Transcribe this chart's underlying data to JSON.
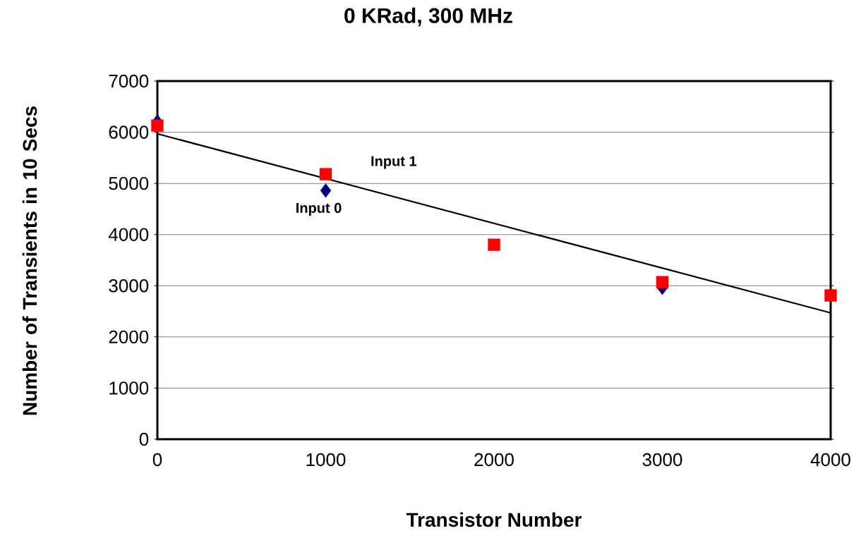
{
  "chart_data": {
    "type": "scatter",
    "title": "0 KRad, 300 MHz",
    "xlabel": "Transistor Number",
    "ylabel": "Number of Transients in 10 Secs",
    "x": [
      0,
      1000,
      2000,
      3000,
      4000
    ],
    "series": [
      {
        "name": "Input 0",
        "color": "#000080",
        "marker": "diamond",
        "values": [
          6210,
          4860,
          null,
          2960,
          null
        ]
      },
      {
        "name": "Input 1",
        "color": "#ff0000",
        "marker": "square",
        "values": [
          6130,
          5180,
          3800,
          3070,
          2810
        ]
      },
      {
        "type": "line",
        "color": "#000000",
        "marker": "none",
        "x": [
          0,
          4000
        ],
        "values": [
          5970,
          2470
        ]
      }
    ],
    "xlim": [
      0,
      4000
    ],
    "ylim": [
      0,
      7000
    ],
    "xticks": [
      0,
      1000,
      2000,
      3000,
      4000
    ],
    "yticks": [
      0,
      1000,
      2000,
      3000,
      4000,
      5000,
      6000,
      7000
    ],
    "grid": "y"
  }
}
